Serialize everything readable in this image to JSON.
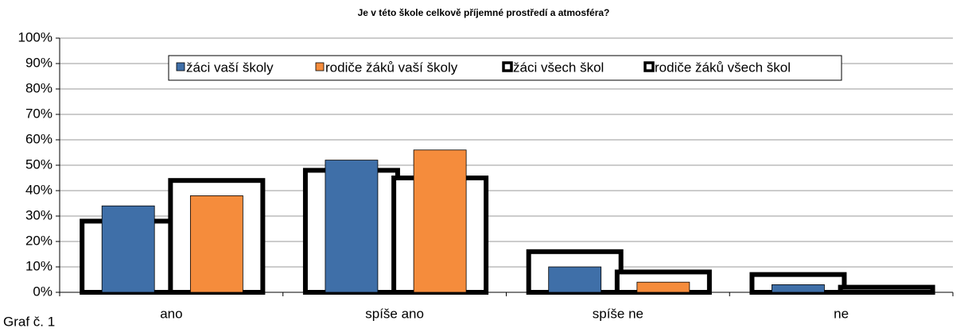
{
  "chart_data": {
    "type": "bar",
    "title": "Je v této škole celkově příjemné prostředí a atmosféra?",
    "categories": [
      "ano",
      "spíše ano",
      "spíše ne",
      "ne"
    ],
    "series": [
      {
        "name": "žáci vaší školy",
        "color": "#3f6fa8",
        "style": "fill",
        "values": [
          34,
          52,
          10,
          3
        ]
      },
      {
        "name": "rodiče žáků vaší školy",
        "color": "#f58c3c",
        "style": "fill",
        "values": [
          38,
          56,
          4,
          0
        ]
      },
      {
        "name": "žáci všech škol",
        "color": "#000000",
        "style": "outline",
        "values": [
          28,
          48,
          16,
          7
        ]
      },
      {
        "name": "rodiče žáků všech škol",
        "color": "#000000",
        "style": "outline",
        "values": [
          44,
          45,
          8,
          2
        ]
      }
    ],
    "ylim": [
      0,
      100
    ],
    "yticks": [
      {
        "value": 0,
        "label": "0%"
      },
      {
        "value": 10,
        "label": "10%"
      },
      {
        "value": 20,
        "label": "20%"
      },
      {
        "value": 30,
        "label": "30%"
      },
      {
        "value": 40,
        "label": "40%"
      },
      {
        "value": 50,
        "label": "50%"
      },
      {
        "value": 60,
        "label": "60%"
      },
      {
        "value": 70,
        "label": "70%"
      },
      {
        "value": 80,
        "label": "80%"
      },
      {
        "value": 90,
        "label": "90%"
      },
      {
        "value": 100,
        "label": "100%"
      }
    ],
    "grid": true,
    "legend": "top",
    "caption": "Graf č. 1"
  }
}
